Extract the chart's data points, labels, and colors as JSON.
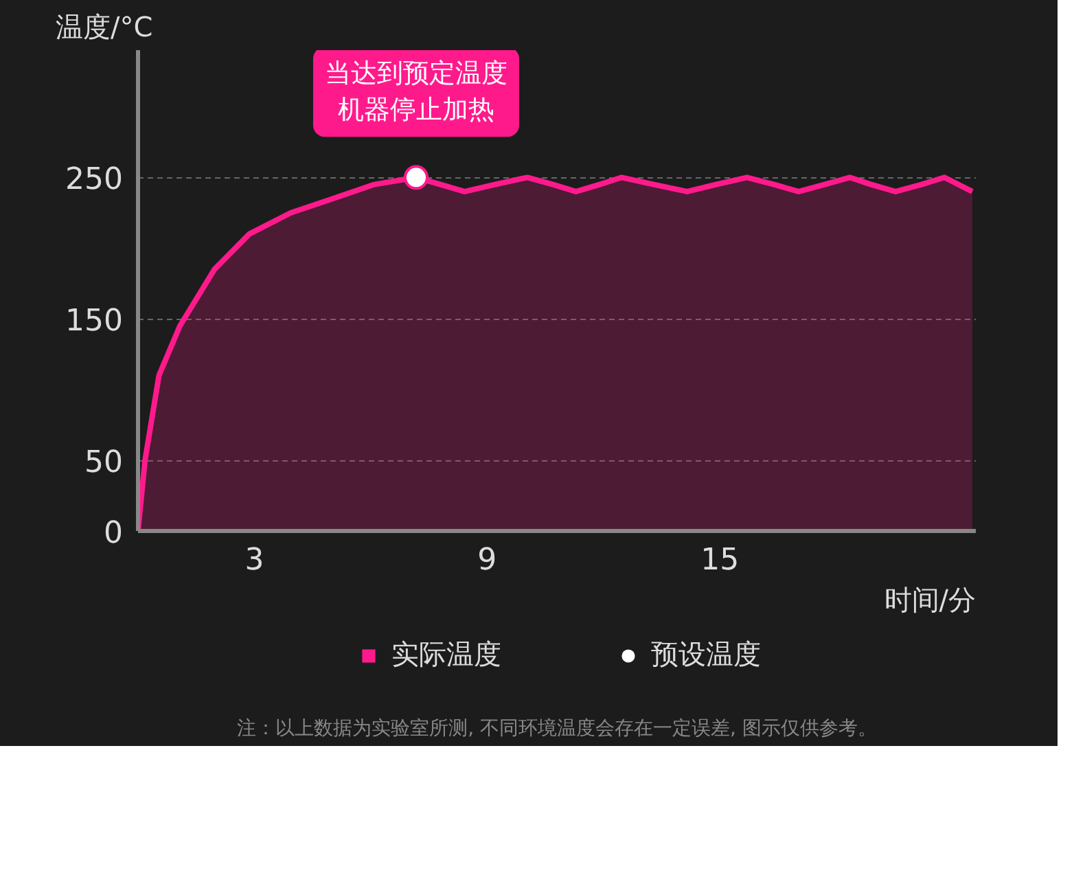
{
  "chart_data": {
    "type": "area",
    "xlabel": "时间/分",
    "ylabel": "温度/°C",
    "xlim": [
      0,
      21.6
    ],
    "ylim": [
      0,
      340
    ],
    "xticks": [
      3,
      9,
      15
    ],
    "yticks": [
      0,
      50,
      150,
      250
    ],
    "grid": "y",
    "legend": "bottom",
    "series": [
      {
        "name": "实际温度",
        "color": "#ff1a8c",
        "x": [
          0,
          0.18,
          0.54,
          1.08,
          1.97,
          2.87,
          3.94,
          5.02,
          6.09,
          7.17,
          7.8,
          8.42,
          9.2,
          10.04,
          10.7,
          11.29,
          11.9,
          12.47,
          13.3,
          14.16,
          14.9,
          15.7,
          16.4,
          17.03,
          17.7,
          18.35,
          18.9,
          19.53,
          20.2,
          20.79,
          21.51
        ],
        "values": [
          0,
          50,
          110,
          145,
          185,
          210,
          225,
          235,
          245,
          250,
          245,
          240,
          245,
          250,
          245,
          240,
          245,
          250,
          245,
          240,
          245,
          250,
          245,
          240,
          245,
          250,
          245,
          240,
          245,
          250,
          240
        ]
      },
      {
        "name": "预设温度",
        "type": "scatter",
        "color": "#ffffff",
        "x": [
          7.17
        ],
        "values": [
          250
        ]
      }
    ],
    "annotations": [
      {
        "text": "当达到预定温度机器停止加热",
        "x": 7.17,
        "y": 250
      },
      "注：以上数据为实验室所测, 不同环境温度会存在一定误差, 图示仅供参考。"
    ]
  }
}
